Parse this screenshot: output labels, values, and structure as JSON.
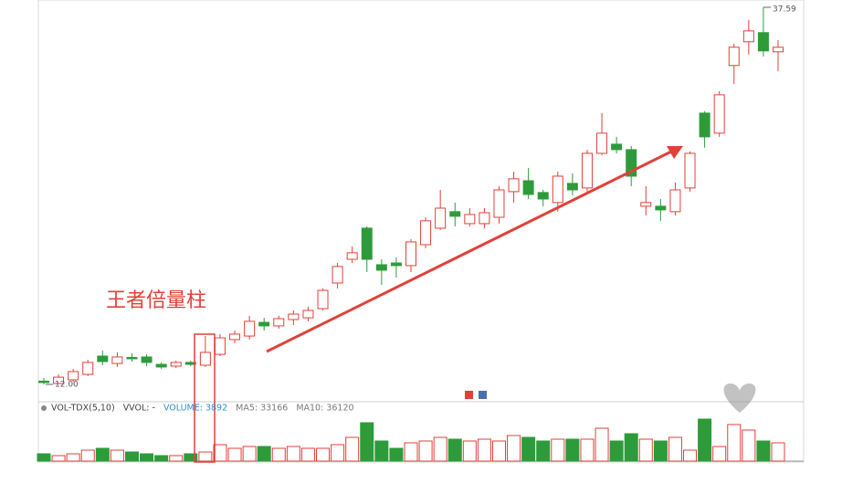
{
  "chart_data": {
    "type": "candlestick",
    "annotation": "王者倍量柱",
    "price_markers": [
      {
        "value": 37.59,
        "label": "37.59"
      },
      {
        "value": 12.0,
        "label": "12.00"
      }
    ],
    "volume_header": [
      "VOL-TDX(5,10)",
      "VVOL: -",
      "VOLUME: 3892",
      "MA5: 33166",
      "MA10: 36120"
    ],
    "up_color": "#e0413a",
    "down_color": "#2e9b3a",
    "open": [
      12.22,
      12.06,
      12.31,
      12.68,
      13.92,
      13.42,
      13.83,
      13.86,
      13.36,
      13.24,
      13.49,
      13.3,
      14.04,
      15.04,
      15.28,
      16.21,
      15.97,
      16.4,
      16.52,
      17.14,
      18.88,
      20.49,
      22.6,
      20.12,
      20.24,
      20.06,
      21.48,
      22.6,
      23.72,
      22.91,
      22.91,
      23.34,
      25.08,
      25.82,
      25.02,
      24.34,
      25.64,
      25.33,
      27.68,
      28.3,
      27.93,
      24.09,
      24.09,
      23.72,
      25.33,
      30.41,
      29.05,
      33.64,
      35.25,
      35.87,
      34.57
    ],
    "high": [
      12.43,
      12.68,
      13.05,
      13.67,
      14.29,
      14.17,
      14.11,
      14.04,
      13.49,
      13.61,
      13.61,
      15.28,
      15.41,
      15.66,
      16.65,
      16.52,
      16.65,
      17.02,
      17.27,
      18.51,
      20.24,
      21.36,
      22.72,
      20.49,
      20.62,
      21.86,
      23.34,
      25.2,
      24.34,
      23.96,
      23.96,
      25.45,
      26.44,
      26.69,
      25.2,
      26.44,
      26.32,
      27.93,
      30.41,
      28.8,
      28.18,
      25.45,
      24.58,
      25.7,
      27.81,
      30.54,
      31.9,
      35.12,
      36.74,
      37.59,
      35.37
    ],
    "low": [
      12.0,
      12.02,
      12.18,
      12.56,
      13.3,
      13.18,
      13.55,
      13.24,
      13.05,
      13.11,
      13.24,
      13.18,
      13.92,
      14.79,
      15.04,
      15.66,
      15.78,
      16.03,
      16.28,
      17.02,
      18.51,
      20.24,
      19.62,
      18.76,
      19.25,
      19.62,
      21.24,
      22.48,
      22.72,
      22.72,
      22.6,
      22.91,
      24.34,
      24.58,
      24.09,
      23.72,
      24.83,
      25.08,
      27.56,
      27.68,
      25.45,
      23.47,
      23.1,
      23.47,
      25.08,
      28.06,
      28.8,
      32.4,
      34.38,
      34.26,
      33.26
    ],
    "close": [
      12.18,
      12.49,
      12.87,
      13.49,
      13.55,
      13.86,
      13.8,
      13.49,
      13.18,
      13.49,
      13.36,
      14.17,
      15.16,
      15.41,
      16.28,
      15.97,
      16.46,
      16.77,
      17.02,
      18.38,
      20.0,
      20.93,
      20.49,
      19.75,
      20.06,
      21.67,
      23.1,
      23.96,
      23.41,
      23.53,
      23.65,
      25.2,
      25.95,
      24.89,
      24.58,
      26.13,
      25.2,
      27.68,
      29.05,
      27.93,
      26.13,
      24.34,
      23.84,
      25.2,
      27.68,
      28.8,
      31.65,
      34.88,
      35.99,
      34.63,
      34.88
    ],
    "volume": [
      31200,
      23400,
      31200,
      46800,
      54600,
      46800,
      39000,
      31200,
      23400,
      23400,
      31200,
      38921,
      70200,
      54600,
      62400,
      62400,
      54600,
      62400,
      54600,
      54600,
      70200,
      101400,
      163800,
      85800,
      54600,
      78000,
      85800,
      101400,
      93600,
      85800,
      93600,
      85800,
      109200,
      101400,
      85800,
      93600,
      93600,
      93600,
      140400,
      85800,
      117000,
      93600,
      85800,
      101400,
      46800,
      179400,
      62400,
      156000,
      132600,
      85800,
      78000
    ]
  }
}
